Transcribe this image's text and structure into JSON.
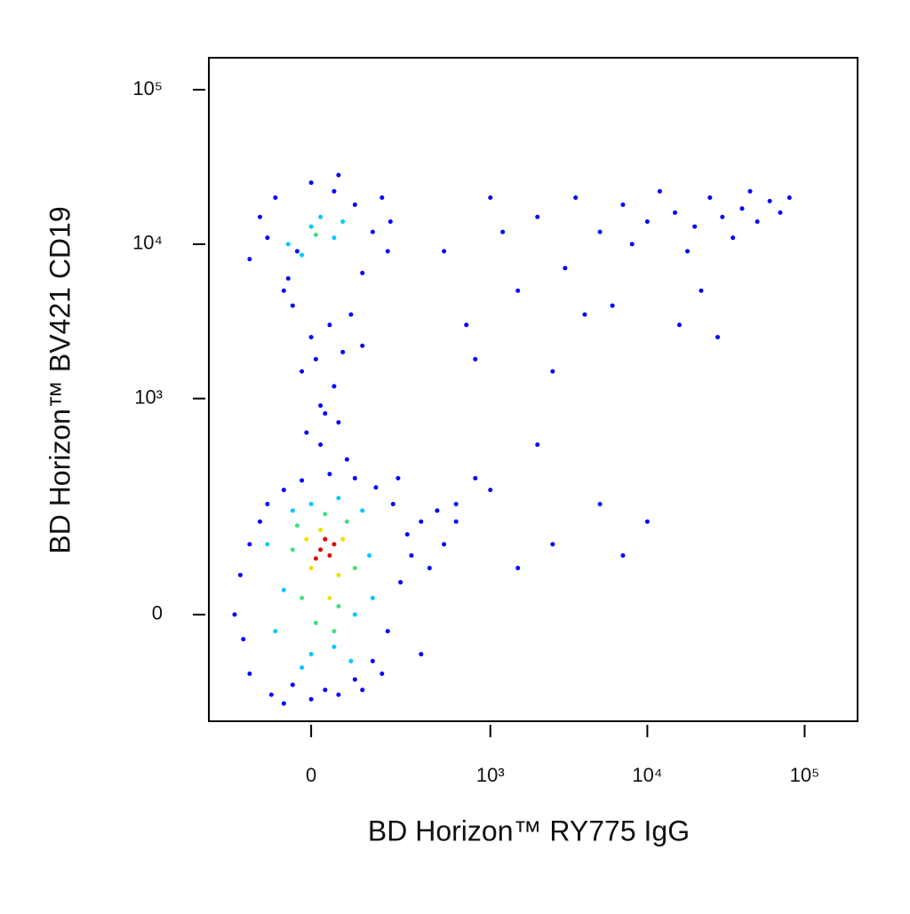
{
  "chart_data": {
    "type": "scatter",
    "xlabel": "BD Horizon™ RY775 IgG",
    "ylabel": "BD Horizon™ BV421 CD19",
    "xscale": "biexponential",
    "yscale": "biexponential",
    "xlim": [
      -310,
      217000
    ],
    "ylim": [
      -188,
      161000
    ],
    "xticks": [
      0,
      {
        "value": 1000,
        "label": "10³"
      },
      {
        "value": 10000,
        "label": "10⁴"
      },
      {
        "value": 100000,
        "label": "10⁵"
      }
    ],
    "yticks": [
      0,
      {
        "value": 1000,
        "label": "10³"
      },
      {
        "value": 10000,
        "label": "10⁴"
      },
      {
        "value": 100000,
        "label": "10⁵"
      }
    ],
    "series": [
      {
        "color": "#0000ff",
        "x": [
          -180,
          -150,
          -120,
          -90,
          -60,
          -40,
          -200,
          -100,
          0,
          30,
          60,
          100,
          150,
          200,
          250,
          280,
          220,
          160,
          100,
          40,
          -20,
          -150,
          -170,
          120,
          300,
          350,
          400,
          450,
          500,
          180,
          -60,
          240,
          600,
          350,
          80,
          20,
          60,
          -10,
          20,
          50,
          -20,
          70,
          0,
          40,
          -40,
          90,
          10,
          -60,
          120,
          30,
          -150,
          -120,
          -80,
          -50,
          0,
          50,
          100,
          150,
          200,
          180,
          -30,
          120,
          -100,
          60,
          210,
          5000,
          7000,
          10000,
          15000,
          20000,
          25000,
          30000,
          40000,
          50000,
          60000,
          70000,
          80000,
          35000,
          18000,
          12000,
          45000,
          8000,
          22000,
          16000,
          28000,
          6000,
          500,
          1000,
          2000,
          3000,
          1500,
          800,
          2500,
          4000,
          1200,
          3500,
          700,
          2000,
          1000,
          5000,
          10000,
          7000,
          2500,
          1500,
          800,
          600
        ],
        "values": [
          50,
          -80,
          150,
          -120,
          250,
          -100,
          0,
          200,
          -130,
          -110,
          -120,
          -90,
          -60,
          -20,
          40,
          120,
          200,
          260,
          300,
          320,
          290,
          100,
          -30,
          -110,
          80,
          150,
          60,
          180,
          100,
          -80,
          -140,
          300,
          200,
          -50,
          400,
          500,
          700,
          600,
          900,
          1200,
          1500,
          2000,
          2500,
          3000,
          4000,
          3500,
          1800,
          5000,
          2200,
          800,
          8000,
          15000,
          20000,
          6000,
          25000,
          22000,
          18000,
          12000,
          9000,
          20000,
          9000,
          6500,
          11000,
          28000,
          14000,
          12000,
          18000,
          14000,
          16000,
          13000,
          20000,
          15000,
          17000,
          14000,
          19000,
          16000,
          20000,
          11000,
          9000,
          22000,
          22000,
          10000,
          5000,
          3000,
          2500,
          4000,
          9000,
          20000,
          15000,
          7000,
          5000,
          1800,
          1500,
          3500,
          12000,
          20000,
          3000,
          500,
          250,
          200,
          150,
          80,
          100,
          60,
          300,
          150
        ]
      },
      {
        "color": "#00c8ff",
        "x": [
          -100,
          -60,
          -40,
          0,
          50,
          100,
          140,
          120,
          60,
          0,
          -80,
          150,
          -20,
          90,
          -50,
          0,
          50,
          20,
          -20,
          70
        ],
        "values": [
          100,
          30,
          180,
          -50,
          -40,
          0,
          80,
          180,
          220,
          200,
          -20,
          20,
          -70,
          -60,
          10000,
          13000,
          11000,
          15000,
          8500,
          14000
        ]
      },
      {
        "color": "#40e080",
        "x": [
          -40,
          -20,
          10,
          60,
          100,
          80,
          30,
          -30,
          50,
          10
        ],
        "values": [
          90,
          20,
          -10,
          10,
          60,
          150,
          170,
          140,
          -20,
          11500
        ]
      },
      {
        "color": "#f0e000",
        "x": [
          0,
          20,
          60,
          70,
          -10,
          40
        ],
        "values": [
          60,
          130,
          50,
          110,
          110,
          20
        ]
      },
      {
        "color": "#e00000",
        "x": [
          20,
          40,
          30,
          10,
          50
        ],
        "values": [
          90,
          80,
          110,
          75,
          100
        ]
      }
    ]
  }
}
